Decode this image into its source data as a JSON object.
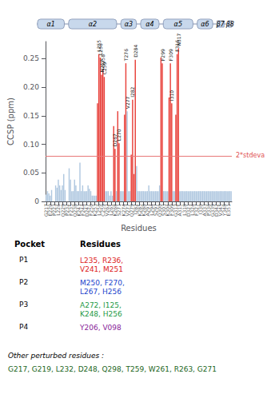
{
  "chart_data": {
    "type": "bar",
    "ylabel": "CCSP (ppm)",
    "xlabel": "Residues",
    "ylim": [
      0,
      0.28
    ],
    "yticks": [
      0,
      0.05,
      {
        "value": 0.1,
        "label": "0.10"
      },
      0.15,
      {
        "value": 0.2,
        "label": "0.20"
      },
      0.25
    ],
    "grid": false,
    "categories": [
      "G217",
      null,
      null,
      "E220",
      null,
      null,
      "P223",
      null,
      null,
      "L226",
      null,
      null,
      "Q229",
      null,
      null,
      "P232",
      null,
      null,
      "F235",
      null,
      null,
      "Q238",
      null,
      null,
      "K241",
      null,
      null,
      "F244",
      null,
      null,
      "D247",
      null,
      null,
      "F250",
      null,
      null,
      "K253",
      null,
      null,
      "L256",
      null,
      null,
      "C259",
      null,
      null,
      "V262",
      null,
      null,
      "L265",
      null,
      null,
      "K268",
      null,
      null,
      "S271",
      null,
      null,
      "K274",
      null,
      null,
      "V277",
      null,
      null,
      "Q279",
      null,
      null,
      "I282",
      null,
      null,
      "K285",
      null,
      null,
      "K288",
      null,
      null,
      "A291",
      null,
      null,
      "L294",
      null,
      null,
      "S297",
      null,
      null,
      "Q300",
      null,
      null,
      "S303",
      null,
      null,
      "K306",
      null,
      null,
      "F309",
      null,
      null,
      "G312",
      null,
      null,
      "A315",
      null,
      null,
      "L318",
      null,
      null,
      "D321",
      null,
      null,
      "L324",
      null,
      null,
      "F327",
      null,
      null,
      "I330",
      null,
      null,
      "A333",
      null,
      null,
      "P336",
      null,
      null,
      "G339",
      null,
      null,
      "D342",
      null,
      null,
      "V345",
      null,
      null,
      "Y348",
      null,
      null,
      "E351",
      null,
      null
    ],
    "values": [
      0.012,
      0.018,
      0.014,
      0.01,
      0.02,
      0.0,
      0.0,
      0.028,
      0.024,
      0.038,
      0.028,
      0.02,
      0.028,
      0.048,
      0.02,
      0.0,
      0.0,
      0.058,
      0.038,
      0.018,
      0.018,
      0.038,
      0.028,
      0.018,
      0.018,
      0.068,
      0.018,
      0.028,
      0.018,
      0.018,
      0.018,
      0.028,
      0.022,
      0.018,
      0.01,
      0.01,
      0.01,
      0.01,
      0.172,
      0.258,
      0.252,
      0.222,
      0.232,
      0.218,
      0.018,
      0.018,
      0.018,
      0.01,
      0.018,
      0.01,
      0.132,
      0.092,
      0.018,
      0.158,
      0.102,
      0.018,
      0.018,
      0.018,
      0.152,
      0.242,
      0.158,
      0.018,
      0.018,
      0.082,
      0.178,
      0.048,
      0.248,
      0.062,
      0.018,
      0.018,
      0.018,
      0.018,
      0.018,
      0.018,
      0.018,
      0.018,
      0.028,
      0.018,
      0.018,
      0.018,
      0.018,
      0.018,
      0.018,
      0.018,
      0.028,
      0.252,
      0.242,
      0.018,
      0.018,
      0.018,
      0.018,
      0.182,
      0.242,
      0.172,
      0.018,
      0.018,
      0.152,
      0.258,
      0.268,
      0.018,
      0.018,
      0.018,
      0.018,
      0.018,
      0.018,
      0.018,
      0.018,
      0.018,
      0.018,
      0.018,
      0.018,
      0.018,
      0.018,
      0.018,
      0.018,
      0.018,
      0.018,
      0.018,
      0.018,
      0.018,
      0.018,
      0.018,
      0.018,
      0.018,
      0.018,
      0.018,
      0.018,
      0.018,
      0.018,
      0.018,
      0.018,
      0.018,
      0.018,
      0.018,
      0.018,
      0.018,
      0.018,
      0.018
    ],
    "colors": [
      "#b0c8e0",
      "#b0c8e0",
      "#b0c8e0",
      "#b0c8e0",
      "#b0c8e0",
      "#b0c8e0",
      "#b0c8e0",
      "#b0c8e0",
      "#b0c8e0",
      "#b0c8e0",
      "#b0c8e0",
      "#b0c8e0",
      "#b0c8e0",
      "#b0c8e0",
      "#b0c8e0",
      "#b0c8e0",
      "#b0c8e0",
      "#b0c8e0",
      "#b0c8e0",
      "#b0c8e0",
      "#b0c8e0",
      "#b0c8e0",
      "#b0c8e0",
      "#b0c8e0",
      "#b0c8e0",
      "#b0c8e0",
      "#b0c8e0",
      "#b0c8e0",
      "#b0c8e0",
      "#b0c8e0",
      "#b0c8e0",
      "#b0c8e0",
      "#b0c8e0",
      "#b0c8e0",
      "#b0c8e0",
      "#b0c8e0",
      "#b0c8e0",
      "#b0c8e0",
      "#e8403a",
      "#e8403a",
      "#e8403a",
      "#e8403a",
      "#e8403a",
      "#e8403a",
      "#b0c8e0",
      "#b0c8e0",
      "#b0c8e0",
      "#b0c8e0",
      "#b0c8e0",
      "#b0c8e0",
      "#e8403a",
      "#e8403a",
      "#b0c8e0",
      "#e8403a",
      "#e8403a",
      "#b0c8e0",
      "#b0c8e0",
      "#b0c8e0",
      "#e8403a",
      "#e8403a",
      "#b0c8e0",
      "#b0c8e0",
      "#b0c8e0",
      "#e8403a",
      "#e8403a",
      "#e8403a",
      "#e8403a",
      "#b0c8e0",
      "#b0c8e0",
      "#b0c8e0",
      "#b0c8e0",
      "#b0c8e0",
      "#b0c8e0",
      "#b0c8e0",
      "#b0c8e0",
      "#b0c8e0",
      "#b0c8e0",
      "#b0c8e0",
      "#b0c8e0",
      "#b0c8e0",
      "#b0c8e0",
      "#b0c8e0",
      "#b0c8e0",
      "#b0c8e0",
      "#b0c8e0",
      "#e8403a",
      "#e8403a",
      "#b0c8e0",
      "#b0c8e0",
      "#b0c8e0",
      "#b0c8e0",
      "#e8403a",
      "#e8403a",
      "#e8403a",
      "#b0c8e0",
      "#b0c8e0",
      "#e8403a",
      "#e8403a",
      "#e8403a",
      "#b0c8e0",
      "#b0c8e0",
      "#b0c8e0",
      "#b0c8e0",
      "#b0c8e0",
      "#b0c8e0",
      "#b0c8e0",
      "#b0c8e0",
      "#b0c8e0",
      "#b0c8e0",
      "#b0c8e0",
      "#b0c8e0",
      "#b0c8e0",
      "#b0c8e0",
      "#b0c8e0",
      "#b0c8e0",
      "#b0c8e0",
      "#b0c8e0",
      "#b0c8e0",
      "#b0c8e0",
      "#b0c8e0",
      "#b0c8e0",
      "#b0c8e0",
      "#b0c8e0",
      "#b0c8e0",
      "#b0c8e0",
      "#b0c8e0",
      "#b0c8e0",
      "#b0c8e0",
      "#b0c8e0",
      "#b0c8e0",
      "#b0c8e0",
      "#b0c8e0",
      "#b0c8e0",
      "#b0c8e0",
      "#b0c8e0",
      "#b0c8e0",
      "#b0c8e0",
      "#b0c8e0"
    ],
    "bar_labels": [
      null,
      null,
      null,
      null,
      null,
      null,
      null,
      null,
      null,
      null,
      null,
      null,
      null,
      null,
      null,
      null,
      null,
      null,
      null,
      null,
      null,
      null,
      null,
      null,
      null,
      null,
      null,
      null,
      null,
      null,
      null,
      null,
      null,
      null,
      null,
      null,
      null,
      null,
      null,
      "L255",
      "L256",
      "N257",
      "S258",
      "C259",
      null,
      null,
      null,
      null,
      null,
      null,
      null,
      "D267",
      null,
      null,
      "L270",
      null,
      null,
      null,
      null,
      "T276",
      "V277",
      null,
      null,
      null,
      "I282",
      null,
      "D284",
      null,
      null,
      null,
      null,
      null,
      null,
      null,
      null,
      null,
      null,
      null,
      null,
      null,
      null,
      null,
      null,
      null,
      null,
      null,
      "F299",
      null,
      null,
      null,
      null,
      null,
      "F309",
      "I310",
      null,
      null,
      null,
      "F316",
      "N317",
      null,
      null,
      null,
      null,
      null,
      null,
      null,
      null,
      null,
      null,
      null,
      null,
      null,
      null,
      null,
      null,
      null,
      null,
      null,
      null,
      null,
      null,
      null,
      null,
      null,
      null,
      null,
      null,
      null,
      null,
      null,
      null,
      null,
      null,
      null,
      null,
      null,
      null,
      null
    ],
    "threshold": 0.076,
    "threshold_label": "2*stdeva",
    "threshold_color": "#e87878",
    "threshold_text_color": "#e05050",
    "secondary_structure": {
      "color": "#c8d8ec",
      "edge_color": "#8090b0",
      "regions": [
        {
          "name": "α1",
          "start": 0,
          "end": 19,
          "type": "helix"
        },
        {
          "name": "α2",
          "start": 22,
          "end": 56,
          "type": "helix"
        },
        {
          "name": "α3",
          "start": 59,
          "end": 70,
          "type": "helix"
        },
        {
          "name": "α4",
          "start": 73,
          "end": 86,
          "type": "helix"
        },
        {
          "name": "α5",
          "start": 89,
          "end": 110,
          "type": "helix"
        },
        {
          "name": "α6",
          "start": 113,
          "end": 124,
          "type": "helix"
        },
        {
          "name": "β7",
          "start": 127,
          "end": 132,
          "type": "sheet"
        },
        {
          "name": "β8",
          "start": 135,
          "end": 140,
          "type": "sheet"
        }
      ]
    },
    "pocket_table": {
      "headers": [
        "Pocket",
        "Residues"
      ],
      "rows": [
        {
          "pocket": "P1",
          "color": "#dd2222",
          "residues": "L235, R236,\nV241, M251"
        },
        {
          "pocket": "P2",
          "color": "#2244cc",
          "residues": "M250, F270,\nL267, H256"
        },
        {
          "pocket": "P3",
          "color": "#229944",
          "residues": "A272, I125,\nK248, H256"
        },
        {
          "pocket": "P4",
          "color": "#882299",
          "residues": "Y206, V098"
        }
      ]
    },
    "other_residues_label": "Other perturbed residues :",
    "other_residues": "G217, G219, L232, D248, Q298, T259, W261, R263, G271",
    "other_residues_color": "#226622"
  }
}
